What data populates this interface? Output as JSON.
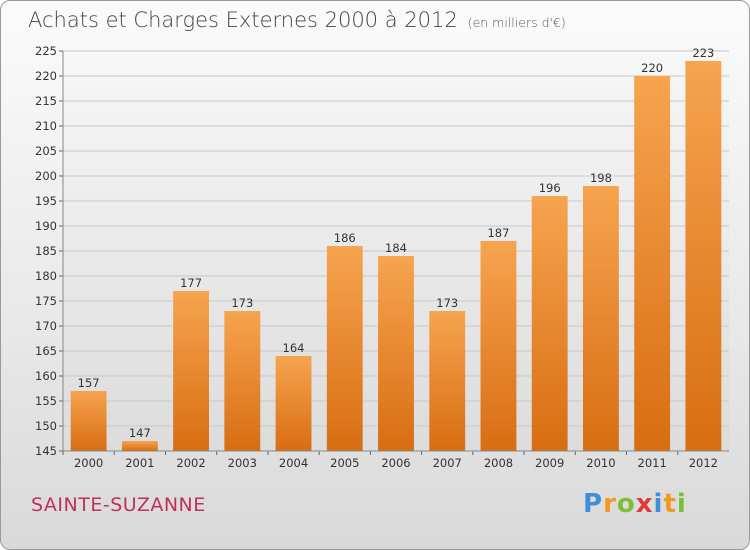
{
  "header": {
    "title": "Achats et Charges Externes 2000 à 2012",
    "subtitle": "(en milliers d'€)"
  },
  "footer": {
    "town": "SAINTE-SUZANNE",
    "logo_letters": [
      "P",
      "r",
      "o",
      "x",
      "i",
      "t",
      "i"
    ],
    "logo_colors": [
      "#3d8fd8",
      "#f29a1f",
      "#7cbf34",
      "#e03a3a",
      "#3d8fd8",
      "#f29a1f",
      "#7cbf34"
    ]
  },
  "colors": {
    "bar_top": "#f6a44f",
    "bar_bottom": "#d86d12",
    "grid": "#c9c9c9"
  },
  "chart_data": {
    "type": "bar",
    "title": "Achats et Charges Externes 2000 à 2012",
    "subtitle": "(en milliers d'€)",
    "categories": [
      "2000",
      "2001",
      "2002",
      "2003",
      "2004",
      "2005",
      "2006",
      "2007",
      "2008",
      "2009",
      "2010",
      "2011",
      "2012"
    ],
    "values": [
      157,
      147,
      177,
      173,
      164,
      186,
      184,
      173,
      187,
      196,
      198,
      220,
      223
    ],
    "ylim": [
      145,
      225
    ],
    "yticks": [
      145,
      150,
      155,
      160,
      165,
      170,
      175,
      180,
      185,
      190,
      195,
      200,
      205,
      210,
      215,
      220,
      225
    ],
    "grid": true,
    "xlabel": "",
    "ylabel": ""
  }
}
